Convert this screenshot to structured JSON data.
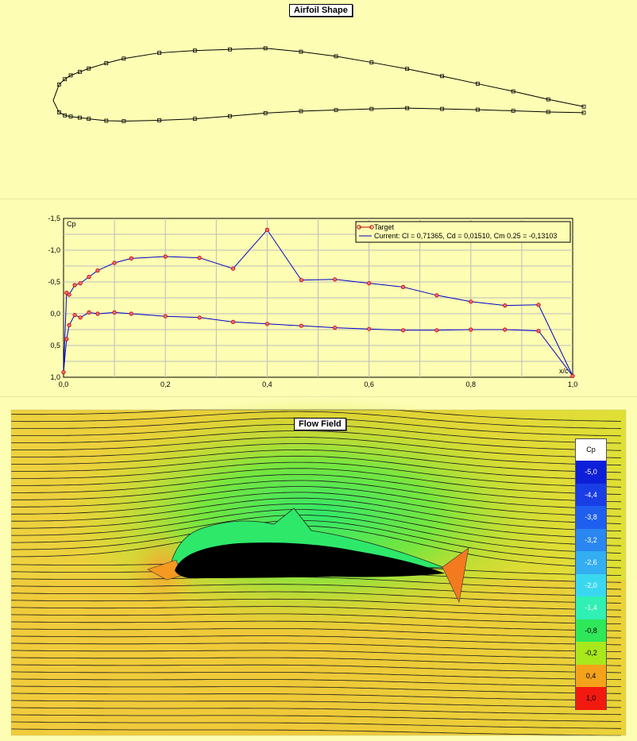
{
  "panels": {
    "airfoil_title": "Airfoil Shape",
    "cp_title": "Cp",
    "flow_title": "Flow Field"
  },
  "airfoil": {
    "upper": [
      [
        1.0,
        0.012
      ],
      [
        0.933,
        0.031
      ],
      [
        0.867,
        0.052
      ],
      [
        0.8,
        0.072
      ],
      [
        0.733,
        0.092
      ],
      [
        0.667,
        0.111
      ],
      [
        0.6,
        0.128
      ],
      [
        0.533,
        0.144
      ],
      [
        0.467,
        0.156
      ],
      [
        0.4,
        0.165
      ],
      [
        0.333,
        0.162
      ],
      [
        0.267,
        0.159
      ],
      [
        0.2,
        0.153
      ],
      [
        0.133,
        0.138
      ],
      [
        0.1,
        0.126
      ],
      [
        0.067,
        0.112
      ],
      [
        0.05,
        0.103
      ],
      [
        0.033,
        0.094
      ],
      [
        0.022,
        0.084
      ],
      [
        0.011,
        0.07
      ],
      [
        0.0,
        0.028
      ]
    ],
    "lower": [
      [
        0.011,
        -0.003
      ],
      [
        0.022,
        -0.011
      ],
      [
        0.033,
        -0.014
      ],
      [
        0.05,
        -0.017
      ],
      [
        0.067,
        -0.02
      ],
      [
        0.1,
        -0.025
      ],
      [
        0.133,
        -0.026
      ],
      [
        0.2,
        -0.024
      ],
      [
        0.267,
        -0.02
      ],
      [
        0.333,
        -0.013
      ],
      [
        0.4,
        -0.005
      ],
      [
        0.467,
        0.0
      ],
      [
        0.533,
        0.003
      ],
      [
        0.6,
        0.006
      ],
      [
        0.667,
        0.008
      ],
      [
        0.733,
        0.006
      ],
      [
        0.8,
        0.004
      ],
      [
        0.867,
        0.001
      ],
      [
        0.933,
        -0.002
      ],
      [
        1.0,
        -0.004
      ]
    ]
  },
  "chart_data": {
    "type": "line",
    "title": "",
    "xlabel": "x/c",
    "ylabel": "Cp",
    "xlim": [
      0,
      1
    ],
    "ylim": [
      -1.5,
      1.0
    ],
    "y_inverted": true,
    "x_ticks": [
      "0,0",
      "0,2",
      "0,4",
      "0,6",
      "0,8",
      "1,0"
    ],
    "y_ticks": [
      "-1,5",
      "-1,0",
      "-0,5",
      "0,0",
      "0,5",
      "1,0"
    ],
    "grid": true,
    "legend_position": "top-right",
    "series": [
      {
        "name": "Target",
        "color": "#c00000",
        "marker": "circle",
        "x": [
          0.0,
          0.006,
          0.011,
          0.022,
          0.033,
          0.05,
          0.067,
          0.1,
          0.133,
          0.2,
          0.267,
          0.333,
          0.4,
          0.467,
          0.533,
          0.6,
          0.667,
          0.733,
          0.8,
          0.867,
          0.933,
          1.0,
          0.006,
          0.011,
          0.022,
          0.033,
          0.05,
          0.067,
          0.1,
          0.133,
          0.2,
          0.267,
          0.333,
          0.4,
          0.467,
          0.533,
          0.6,
          0.667,
          0.733,
          0.8,
          0.867,
          0.933
        ],
        "y": [
          0.92,
          -0.33,
          -0.3,
          -0.45,
          -0.48,
          -0.58,
          -0.68,
          -0.8,
          -0.87,
          -0.9,
          -0.88,
          -0.71,
          -1.32,
          -0.53,
          -0.54,
          -0.48,
          -0.42,
          -0.29,
          -0.19,
          -0.13,
          -0.14,
          0.98,
          0.4,
          0.18,
          0.02,
          0.06,
          -0.02,
          0.0,
          -0.02,
          0.0,
          0.04,
          0.06,
          0.13,
          0.16,
          0.19,
          0.22,
          0.24,
          0.26,
          0.26,
          0.25,
          0.25,
          0.27
        ]
      },
      {
        "name": "Current: Cl = 0,71365, Cd = 0,01510, Cm 0.25 = -0,13103",
        "color": "#0000cc",
        "upper_x": [
          0.0,
          0.006,
          0.011,
          0.022,
          0.033,
          0.05,
          0.067,
          0.1,
          0.133,
          0.2,
          0.267,
          0.333,
          0.4,
          0.467,
          0.533,
          0.6,
          0.667,
          0.733,
          0.8,
          0.867,
          0.933,
          1.0
        ],
        "upper_y": [
          0.92,
          -0.33,
          -0.3,
          -0.45,
          -0.48,
          -0.58,
          -0.68,
          -0.8,
          -0.87,
          -0.9,
          -0.88,
          -0.71,
          -1.32,
          -0.53,
          -0.54,
          -0.48,
          -0.42,
          -0.29,
          -0.19,
          -0.13,
          -0.14,
          0.98
        ],
        "lower_x": [
          0.0,
          0.006,
          0.011,
          0.022,
          0.033,
          0.05,
          0.067,
          0.1,
          0.133,
          0.2,
          0.267,
          0.333,
          0.4,
          0.467,
          0.533,
          0.6,
          0.667,
          0.733,
          0.8,
          0.867,
          0.933,
          1.0
        ],
        "lower_y": [
          0.92,
          0.4,
          0.18,
          0.02,
          0.06,
          -0.02,
          0.0,
          -0.02,
          0.0,
          0.04,
          0.06,
          0.13,
          0.16,
          0.19,
          0.22,
          0.24,
          0.26,
          0.26,
          0.25,
          0.25,
          0.27,
          0.98
        ]
      }
    ]
  },
  "colorbar": {
    "title": "Cp",
    "levels": [
      {
        "label": "-5,0",
        "color": "#0d1fd8"
      },
      {
        "label": "-4,4",
        "color": "#1a3ee6"
      },
      {
        "label": "-3,8",
        "color": "#1f5fef"
      },
      {
        "label": "-3,2",
        "color": "#2a86f0"
      },
      {
        "label": "-2,6",
        "color": "#33aef2"
      },
      {
        "label": "-2,0",
        "color": "#3ad8f0"
      },
      {
        "label": "-1,4",
        "color": "#30f0b4"
      },
      {
        "label": "-0,8",
        "color": "#2ee85a"
      },
      {
        "label": "-0,2",
        "color": "#a8e81c"
      },
      {
        "label": "0,4",
        "color": "#f4a21a"
      },
      {
        "label": "1,0",
        "color": "#f21a10"
      }
    ]
  }
}
